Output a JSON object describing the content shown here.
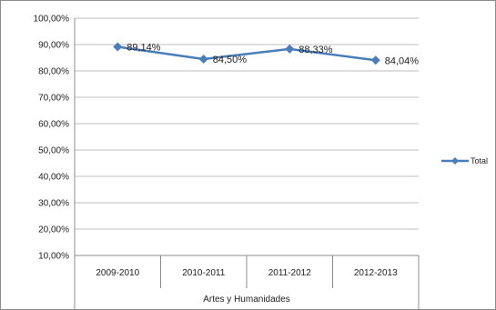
{
  "chart_data": {
    "type": "line",
    "categories": [
      "2009-2010",
      "2010-2011",
      "2011-2012",
      "2012-2013"
    ],
    "group_label": "Artes y Humanidades",
    "series": [
      {
        "name": "Total",
        "values": [
          89.14,
          84.5,
          88.33,
          84.04
        ],
        "labels": [
          "89,14%",
          "84,50%",
          "88,33%",
          "84,04%"
        ],
        "color": "#4a7ebb"
      }
    ],
    "yticks": [
      "10,00%",
      "20,00%",
      "30,00%",
      "40,00%",
      "50,00%",
      "60,00%",
      "70,00%",
      "80,00%",
      "90,00%",
      "100,00%"
    ],
    "ylim": [
      10,
      100
    ],
    "grid": true,
    "legend_position": "right"
  }
}
